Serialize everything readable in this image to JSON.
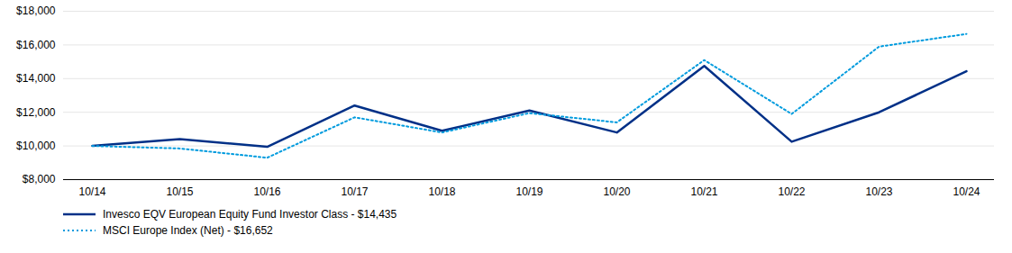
{
  "chart_data": {
    "type": "line",
    "categories": [
      "10/14",
      "10/15",
      "10/16",
      "10/17",
      "10/18",
      "10/19",
      "10/20",
      "10/21",
      "10/22",
      "10/23",
      "10/24"
    ],
    "series": [
      {
        "name": "Invesco EQV European Equity Fund Investor Class - $14,435",
        "color": "#003087",
        "line_style": "solid",
        "values": [
          10000,
          10400,
          9950,
          12400,
          10900,
          12100,
          10800,
          14750,
          10250,
          12000,
          14435
        ]
      },
      {
        "name": "MSCI Europe Index (Net) - $16,652",
        "color": "#009BDE",
        "line_style": "dotted",
        "values": [
          10000,
          9850,
          9300,
          11700,
          10800,
          11950,
          11400,
          15100,
          11900,
          15900,
          16652
        ]
      }
    ],
    "ylim": [
      8000,
      18000
    ],
    "yticks": [
      {
        "value": 8000,
        "label": "$8,000"
      },
      {
        "value": 10000,
        "label": "$10,000"
      },
      {
        "value": 12000,
        "label": "$12,000"
      },
      {
        "value": 14000,
        "label": "$14,000"
      },
      {
        "value": 16000,
        "label": "$16,000"
      },
      {
        "value": 18000,
        "label": "$18,000"
      }
    ],
    "grid": true,
    "legend": "bottom"
  }
}
